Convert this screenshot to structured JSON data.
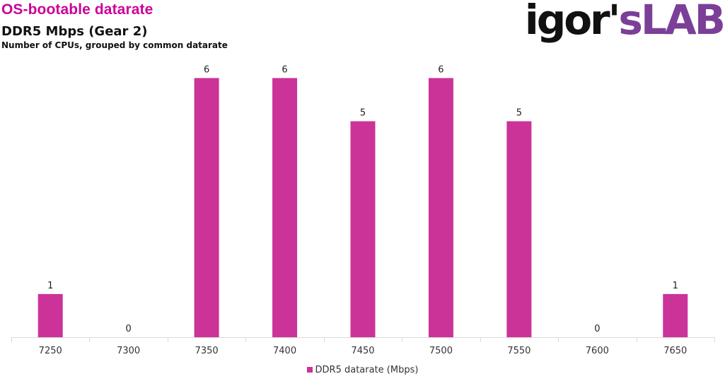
{
  "header": {
    "title": "OS-bootable datarate",
    "subtitle": "DDR5 Mbps (Gear 2)",
    "caption": "Number of CPUs, grouped by common datarate",
    "title_color": "#cc0099"
  },
  "logo": {
    "part1": "igor'",
    "part2": "sLAB",
    "color_dark": "#111111",
    "color_accent": "#7b3f98"
  },
  "chart_data": {
    "type": "bar",
    "categories": [
      "7250",
      "7300",
      "7350",
      "7400",
      "7450",
      "7500",
      "7550",
      "7600",
      "7650"
    ],
    "series": [
      {
        "name": "DDR5 datarate (Mbps)",
        "values": [
          1,
          0,
          6,
          6,
          5,
          6,
          5,
          0,
          1
        ]
      }
    ],
    "title": "DDR5 Mbps (Gear 2)",
    "xlabel": "",
    "ylabel": "",
    "ylim": [
      0,
      7
    ],
    "grid": false,
    "legend_position": "bottom",
    "bar_color": "#cc3399"
  }
}
